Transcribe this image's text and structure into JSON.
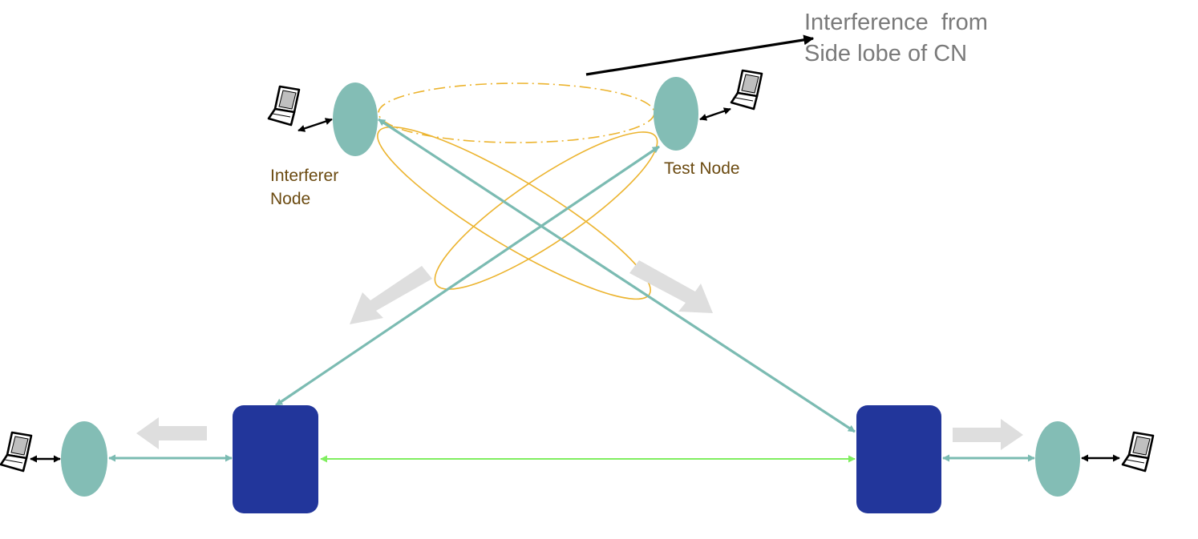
{
  "labels": {
    "interferer_line1": "Interferer",
    "interferer_line2": "Node",
    "test_node": "Test Node",
    "annotation_line1": "Interference  from",
    "annotation_line2": "Side lobe of CN"
  },
  "colors": {
    "node_teal": "#83bdb5",
    "switch_blue": "#22369b",
    "link_teal": "#7bbbb2",
    "link_green": "#80ee60",
    "beam_orange": "#ecb42f",
    "flow_arrow_gray": "#dedede",
    "pointer_black": "#000000"
  },
  "icons": {
    "laptop": "laptop-icon"
  }
}
